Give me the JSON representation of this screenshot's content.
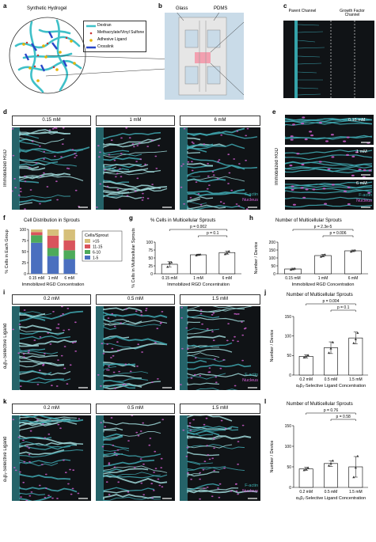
{
  "panels": {
    "a": {
      "label": "a",
      "title": "Synthetic Hydrogel",
      "legend": [
        {
          "text": "Dextran",
          "color": "#3fc0c8"
        },
        {
          "text": "Methacrylate/Vinyl Sulfone",
          "color": "#c83232"
        },
        {
          "text": "Adhesive Ligand",
          "color": "#e6b400"
        },
        {
          "text": "Crosslink",
          "color": "#2846c8"
        }
      ]
    },
    "b": {
      "label": "b",
      "glass": "Glass",
      "pdms": "PDMS"
    },
    "c": {
      "label": "c",
      "parent": "Parent Channel",
      "growth": "Growth Factor Channel"
    },
    "d": {
      "label": "d",
      "ylabel": "Immobilized RGD",
      "conc": [
        "0.15 mM",
        "1 mM",
        "6 mM"
      ],
      "stain1": "F-actin",
      "stain2": "Nucleus"
    },
    "e": {
      "label": "e",
      "ylabel": "Immobilized RGD",
      "conc": [
        "0.15 mM",
        "1 mM",
        "6 mM"
      ],
      "stain1": "F-actin",
      "stain2": "Nucleus"
    },
    "f": {
      "label": "f",
      "title": "Cell Distribution in Sprouts"
    },
    "g": {
      "label": "g",
      "title": "% Cells in Multicellular Sprouts"
    },
    "h": {
      "label": "h",
      "title": "Number of Multicellular Sprouts"
    },
    "i": {
      "label": "i",
      "ylabel": "αᵥβ₃-Selective Ligand",
      "conc": [
        "0.2 mM",
        "0.5 mM",
        "1.5 mM"
      ],
      "stain1": "F-actin",
      "stain2": "Nucleus"
    },
    "j": {
      "label": "j",
      "title": "Number of Multicellular Sprouts"
    },
    "k": {
      "label": "k",
      "ylabel": "α₅β₁-Selective Ligand",
      "conc": [
        "0.2 mM",
        "0.5 mM",
        "1.5 mM"
      ],
      "stain1": "F-actin",
      "stain2": "Nucleus"
    },
    "l": {
      "label": "l",
      "title": "Number of Multicellular Sprouts"
    }
  },
  "chart_data": [
    {
      "id": "f",
      "type": "bar",
      "stacked": true,
      "categories": [
        "0.15 mM",
        "1 mM",
        "6 mM"
      ],
      "xlabel": "Immobilized RGD Concentration",
      "ylabel": "% Cells in Each Group",
      "ylim": [
        0,
        100
      ],
      "yticks": [
        0,
        25,
        50,
        75,
        100
      ],
      "legend_title": "Cells/Sprout",
      "series": [
        {
          "name": "1-5",
          "color": "#4a6fbf",
          "values": [
            70,
            40,
            33
          ]
        },
        {
          "name": "6-10",
          "color": "#4daa5a",
          "values": [
            17,
            18,
            20
          ]
        },
        {
          "name": "11-15",
          "color": "#d9545c",
          "values": [
            7,
            28,
            22
          ]
        },
        {
          "name": ">15",
          "color": "#d6bf7a",
          "values": [
            6,
            14,
            25
          ]
        }
      ]
    },
    {
      "id": "g",
      "type": "bar",
      "categories": [
        "0.15 mM",
        "1 mM",
        "6 mM"
      ],
      "xlabel": "Immobilized RGD Concentration",
      "ylabel": "% Cells in Multicellular Sprouts",
      "ylim": [
        0,
        100
      ],
      "yticks": [
        0,
        25,
        50,
        75,
        100
      ],
      "values": [
        30,
        60,
        67
      ],
      "errors": [
        8,
        2,
        5
      ],
      "points": [
        [
          22,
          35,
          36
        ],
        [
          58,
          60,
          61
        ],
        [
          62,
          66,
          71
        ]
      ],
      "annotations": [
        {
          "text": "p = 0.002",
          "from": 0,
          "to": 2
        },
        {
          "text": "p = 0.1",
          "from": 1,
          "to": 2
        }
      ]
    },
    {
      "id": "h",
      "type": "bar",
      "categories": [
        "0.15 mM",
        "1 mM",
        "6 mM"
      ],
      "xlabel": "Immobilized RGD Concentration",
      "ylabel": "Number / Device",
      "ylim": [
        0,
        200
      ],
      "yticks": [
        0,
        50,
        100,
        150,
        200
      ],
      "values": [
        30,
        115,
        145
      ],
      "errors": [
        5,
        8,
        5
      ],
      "points": [
        [
          26,
          30,
          33
        ],
        [
          108,
          115,
          121
        ],
        [
          140,
          145,
          148
        ]
      ],
      "annotations": [
        {
          "text": "p = 2.3e-5",
          "from": 0,
          "to": 2
        },
        {
          "text": "p = 0.006",
          "from": 1,
          "to": 2
        }
      ]
    },
    {
      "id": "j",
      "type": "bar",
      "categories": [
        "0.2 mM",
        "0.5 mM",
        "1.5 mM"
      ],
      "xlabel": "αᵥβ₃-Selective Ligand Concentration",
      "ylabel": "Number / Device",
      "ylim": [
        0,
        150
      ],
      "yticks": [
        0,
        50,
        100,
        150
      ],
      "values": [
        48,
        70,
        95
      ],
      "errors": [
        4,
        15,
        15
      ],
      "points": [
        [
          45,
          48,
          51
        ],
        [
          57,
          68,
          84
        ],
        [
          82,
          92,
          108
        ]
      ],
      "annotations": [
        {
          "text": "p = 0.004",
          "from": 0,
          "to": 2
        },
        {
          "text": "p = 0.1",
          "from": 1,
          "to": 2
        }
      ]
    },
    {
      "id": "l",
      "type": "bar",
      "categories": [
        "0.2 mM",
        "0.5 mM",
        "1.5 mM"
      ],
      "xlabel": "α₅β₁-Selective Ligand Concentration",
      "ylabel": "Number / Device",
      "ylim": [
        0,
        150
      ],
      "yticks": [
        0,
        50,
        100,
        150
      ],
      "values": [
        45,
        58,
        50
      ],
      "errors": [
        4,
        7,
        25
      ],
      "points": [
        [
          42,
          45,
          48
        ],
        [
          53,
          58,
          65
        ],
        [
          25,
          48,
          76
        ]
      ],
      "annotations": [
        {
          "text": "p = 0.76",
          "from": 0,
          "to": 2
        },
        {
          "text": "p = 0.58",
          "from": 1,
          "to": 2
        }
      ]
    }
  ]
}
